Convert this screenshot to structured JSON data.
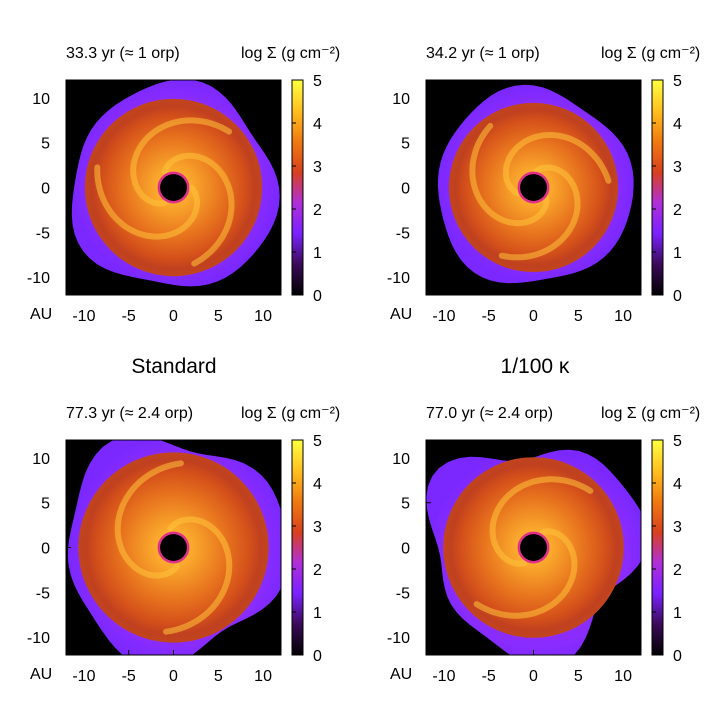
{
  "figure": {
    "group_labels": [
      "Standard",
      "1/100 κ"
    ],
    "unit_label": "AU",
    "colorbar_label": "log Σ (g cm⁻²)"
  },
  "colors": {
    "background": "#000000",
    "colormap": [
      "#000000",
      "#3a0a58",
      "#7a22ff",
      "#b02fd8",
      "#d8401e",
      "#f07a10",
      "#ffc020",
      "#ffff40"
    ]
  },
  "chart_data": [
    {
      "type": "heatmap",
      "title": "33.3 yr (≈ 1 orp)",
      "group": "Standard",
      "xlabel": "AU",
      "ylabel": "",
      "xlim": [
        -12,
        12
      ],
      "ylim": [
        -12,
        12
      ],
      "xticks": [
        -10,
        -5,
        0,
        5,
        10
      ],
      "yticks": [
        10,
        5,
        0,
        -5,
        -10
      ],
      "colorbar": {
        "label": "log Σ (g cm⁻²)",
        "range": [
          0,
          5
        ],
        "ticks": [
          5,
          4,
          3,
          2,
          1,
          0
        ]
      },
      "disk": {
        "outer_radius": 11,
        "inner_hole_radius": 1.5,
        "spiral_arms": 3,
        "asymmetry": 0.05
      }
    },
    {
      "type": "heatmap",
      "title": "34.2 yr (≈ 1 orp)",
      "group": "1/100 κ",
      "xlabel": "AU",
      "ylabel": "",
      "xlim": [
        -12,
        12
      ],
      "ylim": [
        -12,
        12
      ],
      "xticks": [
        -10,
        -5,
        0,
        5,
        10
      ],
      "yticks": [
        10,
        5,
        0,
        -5,
        -10
      ],
      "colorbar": {
        "label": "log Σ (g cm⁻²)",
        "range": [
          0,
          5
        ],
        "ticks": [
          5,
          4,
          3,
          2,
          1,
          0
        ]
      },
      "disk": {
        "outer_radius": 10.5,
        "inner_hole_radius": 1.5,
        "spiral_arms": 3,
        "asymmetry": 0.04
      }
    },
    {
      "type": "heatmap",
      "title": "77.3 yr (≈ 2.4 orp)",
      "group": "Standard",
      "xlabel": "AU",
      "ylabel": "",
      "xlim": [
        -12,
        12
      ],
      "ylim": [
        -12,
        12
      ],
      "xticks": [
        -10,
        -5,
        0,
        5,
        10
      ],
      "yticks": [
        10,
        5,
        0,
        -5,
        -10
      ],
      "colorbar": {
        "label": "log Σ (g cm⁻²)",
        "range": [
          0,
          5
        ],
        "ticks": [
          5,
          4,
          3,
          2,
          1,
          0
        ]
      },
      "disk": {
        "outer_radius": 11.8,
        "inner_hole_radius": 1.5,
        "spiral_arms": 2,
        "asymmetry": 0.08
      }
    },
    {
      "type": "heatmap",
      "title": "77.0 yr (≈ 2.4 orp)",
      "group": "1/100 κ",
      "xlabel": "AU",
      "ylabel": "",
      "xlim": [
        -12,
        12
      ],
      "ylim": [
        -12,
        12
      ],
      "xticks": [
        -10,
        -5,
        0,
        5,
        10
      ],
      "yticks": [
        10,
        5,
        0,
        -5,
        -10
      ],
      "colorbar": {
        "label": "log Σ (g cm⁻²)",
        "range": [
          0,
          5
        ],
        "ticks": [
          5,
          4,
          3,
          2,
          1,
          0
        ]
      },
      "disk": {
        "outer_radius": 11.2,
        "inner_hole_radius": 1.5,
        "spiral_arms": 2,
        "asymmetry": 0.12
      }
    }
  ]
}
